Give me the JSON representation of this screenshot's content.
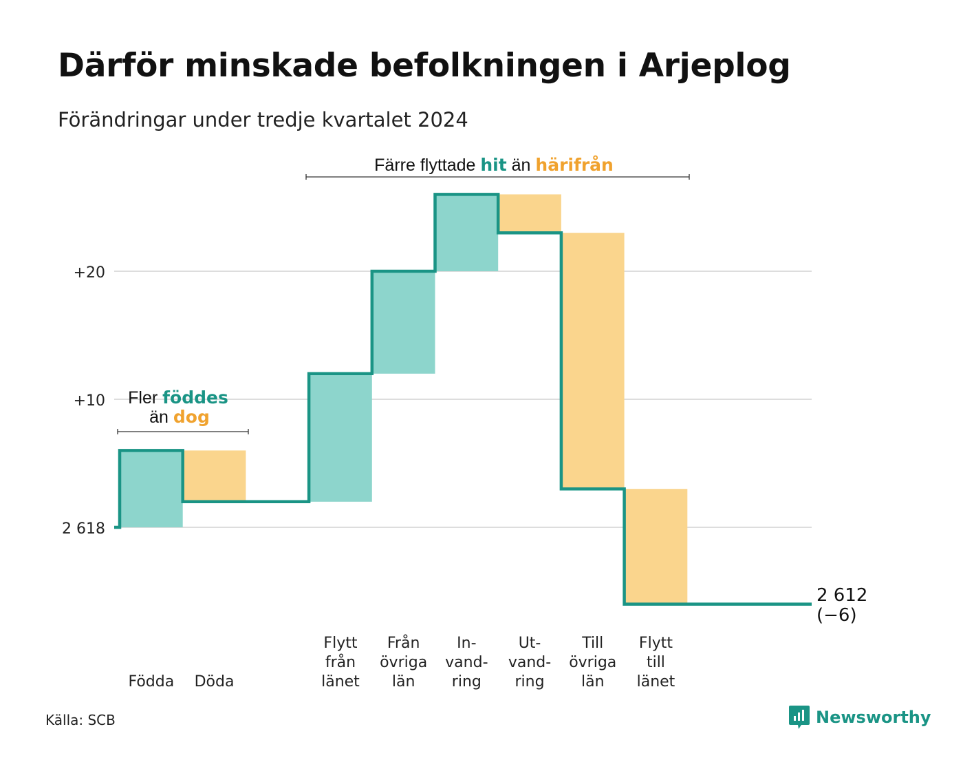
{
  "title": "Därför minskade befolkningen i Arjeplog",
  "subtitle": "Förändringar under tredje kvartalet 2024",
  "source": "Källa: SCB",
  "logo": {
    "text": "Newsworthy",
    "icon": "newsworthy-logo-icon"
  },
  "colors": {
    "line": "#1a9485",
    "increase": "#8dd5cc",
    "decrease": "#fad58d",
    "hit_text": "#1a9485",
    "harifran_text": "#f0a22e",
    "grid": "#dddddd",
    "logo": "#1a9485"
  },
  "annotations": {
    "birth": {
      "part1": "Fler ",
      "highlight1": "föddes",
      "part2": "än ",
      "highlight2": "dog"
    },
    "migration": {
      "part1": "Färre flyttade ",
      "highlight1": "hit",
      "part2": " än ",
      "highlight2": "härifrån"
    }
  },
  "chart_data": {
    "type": "waterfall",
    "start_value": 2618,
    "end_value": 2612,
    "y_ticks": [
      {
        "value": 0,
        "label": "2 618"
      },
      {
        "value": 10,
        "label": "+10"
      },
      {
        "value": 20,
        "label": "+20"
      }
    ],
    "end_label": {
      "line1": "2 612",
      "line2": "(−6)"
    },
    "steps": [
      {
        "label": [
          "Födda"
        ],
        "change": 6
      },
      {
        "label": [
          "Döda"
        ],
        "change": -4
      },
      {
        "label": [],
        "change": 0
      },
      {
        "label": [
          "Flytt",
          "från",
          "länet"
        ],
        "change": 10
      },
      {
        "label": [
          "Från",
          "övriga",
          "län"
        ],
        "change": 8
      },
      {
        "label": [
          "In-",
          "vand-",
          "ring"
        ],
        "change": 6
      },
      {
        "label": [
          "Ut-",
          "vand-",
          "ring"
        ],
        "change": -3
      },
      {
        "label": [
          "Till",
          "övriga",
          "län"
        ],
        "change": -20
      },
      {
        "label": [
          "Flytt",
          "till",
          "länet"
        ],
        "change": -9
      }
    ],
    "grid": true
  }
}
